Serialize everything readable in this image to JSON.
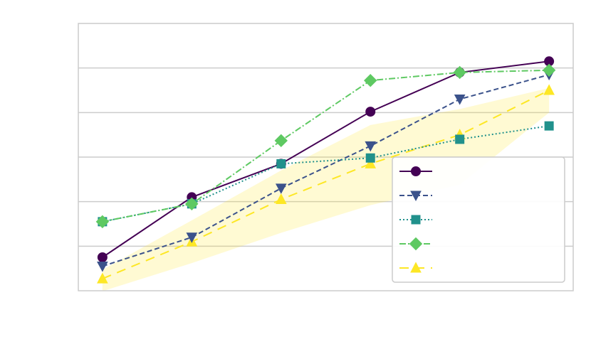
{
  "chart_data": {
    "type": "line",
    "title": "",
    "xlabel": "",
    "ylabel": "",
    "x": [
      0,
      1,
      2,
      3,
      4,
      5
    ],
    "xlim": [
      -0.27,
      5.27
    ],
    "ylim": [
      0,
      6
    ],
    "yticks": [
      0,
      1,
      2,
      3,
      4,
      5,
      6
    ],
    "grid": "horizontal",
    "legend_position": "lower-right",
    "band": {
      "series_index": 4,
      "lower": [
        -0.01,
        0.62,
        1.3,
        1.92,
        2.38,
        4.0
      ],
      "upper": [
        0.47,
        1.58,
        2.7,
        3.72,
        4.08,
        4.55
      ]
    },
    "series": [
      {
        "name": "",
        "color": "#440154",
        "linestyle": "solid",
        "marker": "circle",
        "values": [
          0.75,
          2.1,
          2.85,
          4.02,
          4.9,
          5.15
        ]
      },
      {
        "name": "",
        "color": "#3b528b",
        "linestyle": "dashed",
        "marker": "triangle-down",
        "values": [
          0.55,
          1.2,
          2.3,
          3.25,
          4.3,
          4.85
        ]
      },
      {
        "name": "",
        "color": "#21918c",
        "linestyle": "dotted",
        "marker": "square",
        "values": [
          1.55,
          1.95,
          2.85,
          2.98,
          3.4,
          3.7
        ]
      },
      {
        "name": "",
        "color": "#5ec962",
        "linestyle": "dashdot",
        "marker": "diamond",
        "values": [
          1.55,
          1.95,
          3.37,
          4.72,
          4.9,
          4.95
        ]
      },
      {
        "name": "",
        "color": "#fde725",
        "linestyle": "long-dash",
        "marker": "triangle-up",
        "values": [
          0.27,
          1.1,
          2.05,
          2.85,
          3.5,
          4.5
        ]
      }
    ]
  }
}
